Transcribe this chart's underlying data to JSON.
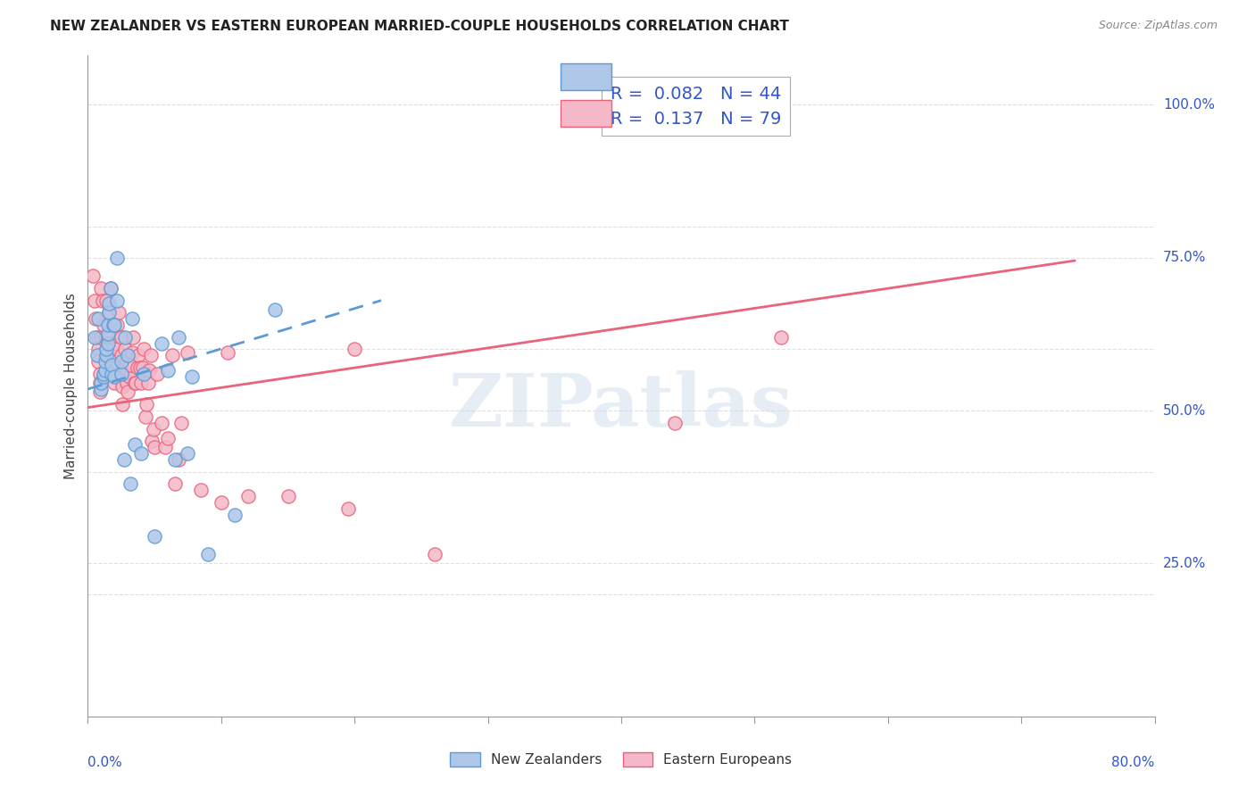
{
  "title": "NEW ZEALANDER VS EASTERN EUROPEAN MARRIED-COUPLE HOUSEHOLDS CORRELATION CHART",
  "source": "Source: ZipAtlas.com",
  "ylabel": "Married-couple Households",
  "ytick_labels": [
    "25.0%",
    "50.0%",
    "75.0%",
    "100.0%"
  ],
  "ytick_values": [
    0.25,
    0.5,
    0.75,
    1.0
  ],
  "nz_color": "#aec6e8",
  "nz_line_color": "#5b9bd5",
  "ee_color": "#f4b8c8",
  "ee_line_color": "#e9637a",
  "nz_trend_x": [
    0.0,
    0.22
  ],
  "nz_trend_y": [
    0.535,
    0.68
  ],
  "ee_trend_x": [
    0.0,
    0.74
  ],
  "ee_trend_y": [
    0.505,
    0.745
  ],
  "nz_scatter_x": [
    0.005,
    0.007,
    0.008,
    0.01,
    0.01,
    0.012,
    0.012,
    0.013,
    0.013,
    0.014,
    0.014,
    0.015,
    0.015,
    0.015,
    0.016,
    0.016,
    0.017,
    0.018,
    0.018,
    0.019,
    0.02,
    0.02,
    0.022,
    0.022,
    0.025,
    0.025,
    0.027,
    0.028,
    0.03,
    0.032,
    0.033,
    0.035,
    0.04,
    0.042,
    0.05,
    0.055,
    0.06,
    0.065,
    0.068,
    0.075,
    0.078,
    0.09,
    0.11,
    0.14
  ],
  "nz_scatter_y": [
    0.62,
    0.59,
    0.65,
    0.535,
    0.545,
    0.555,
    0.56,
    0.565,
    0.58,
    0.59,
    0.6,
    0.61,
    0.625,
    0.64,
    0.66,
    0.675,
    0.7,
    0.56,
    0.575,
    0.64,
    0.555,
    0.64,
    0.68,
    0.75,
    0.56,
    0.58,
    0.42,
    0.62,
    0.59,
    0.38,
    0.65,
    0.445,
    0.43,
    0.56,
    0.295,
    0.61,
    0.565,
    0.42,
    0.62,
    0.43,
    0.555,
    0.265,
    0.33,
    0.665
  ],
  "ee_scatter_x": [
    0.004,
    0.005,
    0.006,
    0.007,
    0.008,
    0.008,
    0.009,
    0.009,
    0.009,
    0.01,
    0.01,
    0.011,
    0.012,
    0.013,
    0.014,
    0.014,
    0.015,
    0.015,
    0.016,
    0.017,
    0.018,
    0.018,
    0.019,
    0.019,
    0.02,
    0.021,
    0.022,
    0.022,
    0.023,
    0.025,
    0.025,
    0.026,
    0.026,
    0.027,
    0.028,
    0.028,
    0.029,
    0.029,
    0.03,
    0.031,
    0.032,
    0.033,
    0.034,
    0.035,
    0.036,
    0.037,
    0.038,
    0.039,
    0.04,
    0.041,
    0.042,
    0.043,
    0.044,
    0.045,
    0.046,
    0.047,
    0.048,
    0.049,
    0.05,
    0.052,
    0.055,
    0.058,
    0.06,
    0.063,
    0.065,
    0.068,
    0.07,
    0.075,
    0.085,
    0.1,
    0.105,
    0.12,
    0.15,
    0.195,
    0.2,
    0.26,
    0.44,
    0.52
  ],
  "ee_scatter_y": [
    0.72,
    0.68,
    0.65,
    0.62,
    0.6,
    0.58,
    0.56,
    0.545,
    0.53,
    0.62,
    0.7,
    0.68,
    0.64,
    0.62,
    0.6,
    0.68,
    0.56,
    0.62,
    0.66,
    0.7,
    0.56,
    0.59,
    0.61,
    0.64,
    0.545,
    0.57,
    0.6,
    0.64,
    0.66,
    0.59,
    0.62,
    0.51,
    0.54,
    0.56,
    0.57,
    0.6,
    0.545,
    0.58,
    0.53,
    0.555,
    0.575,
    0.595,
    0.62,
    0.545,
    0.545,
    0.57,
    0.59,
    0.57,
    0.545,
    0.57,
    0.6,
    0.49,
    0.51,
    0.545,
    0.565,
    0.59,
    0.45,
    0.47,
    0.44,
    0.56,
    0.48,
    0.44,
    0.455,
    0.59,
    0.38,
    0.42,
    0.48,
    0.595,
    0.37,
    0.35,
    0.595,
    0.36,
    0.36,
    0.34,
    0.6,
    0.265,
    0.48,
    0.62
  ],
  "xlim": [
    0.0,
    0.8
  ],
  "ylim": [
    0.0,
    1.08
  ],
  "watermark_text": "ZIPatlas",
  "background_color": "#ffffff",
  "grid_color": "#e0e0e0",
  "title_fontsize": 11,
  "source_fontsize": 9,
  "ylabel_fontsize": 11,
  "tick_fontsize": 11
}
